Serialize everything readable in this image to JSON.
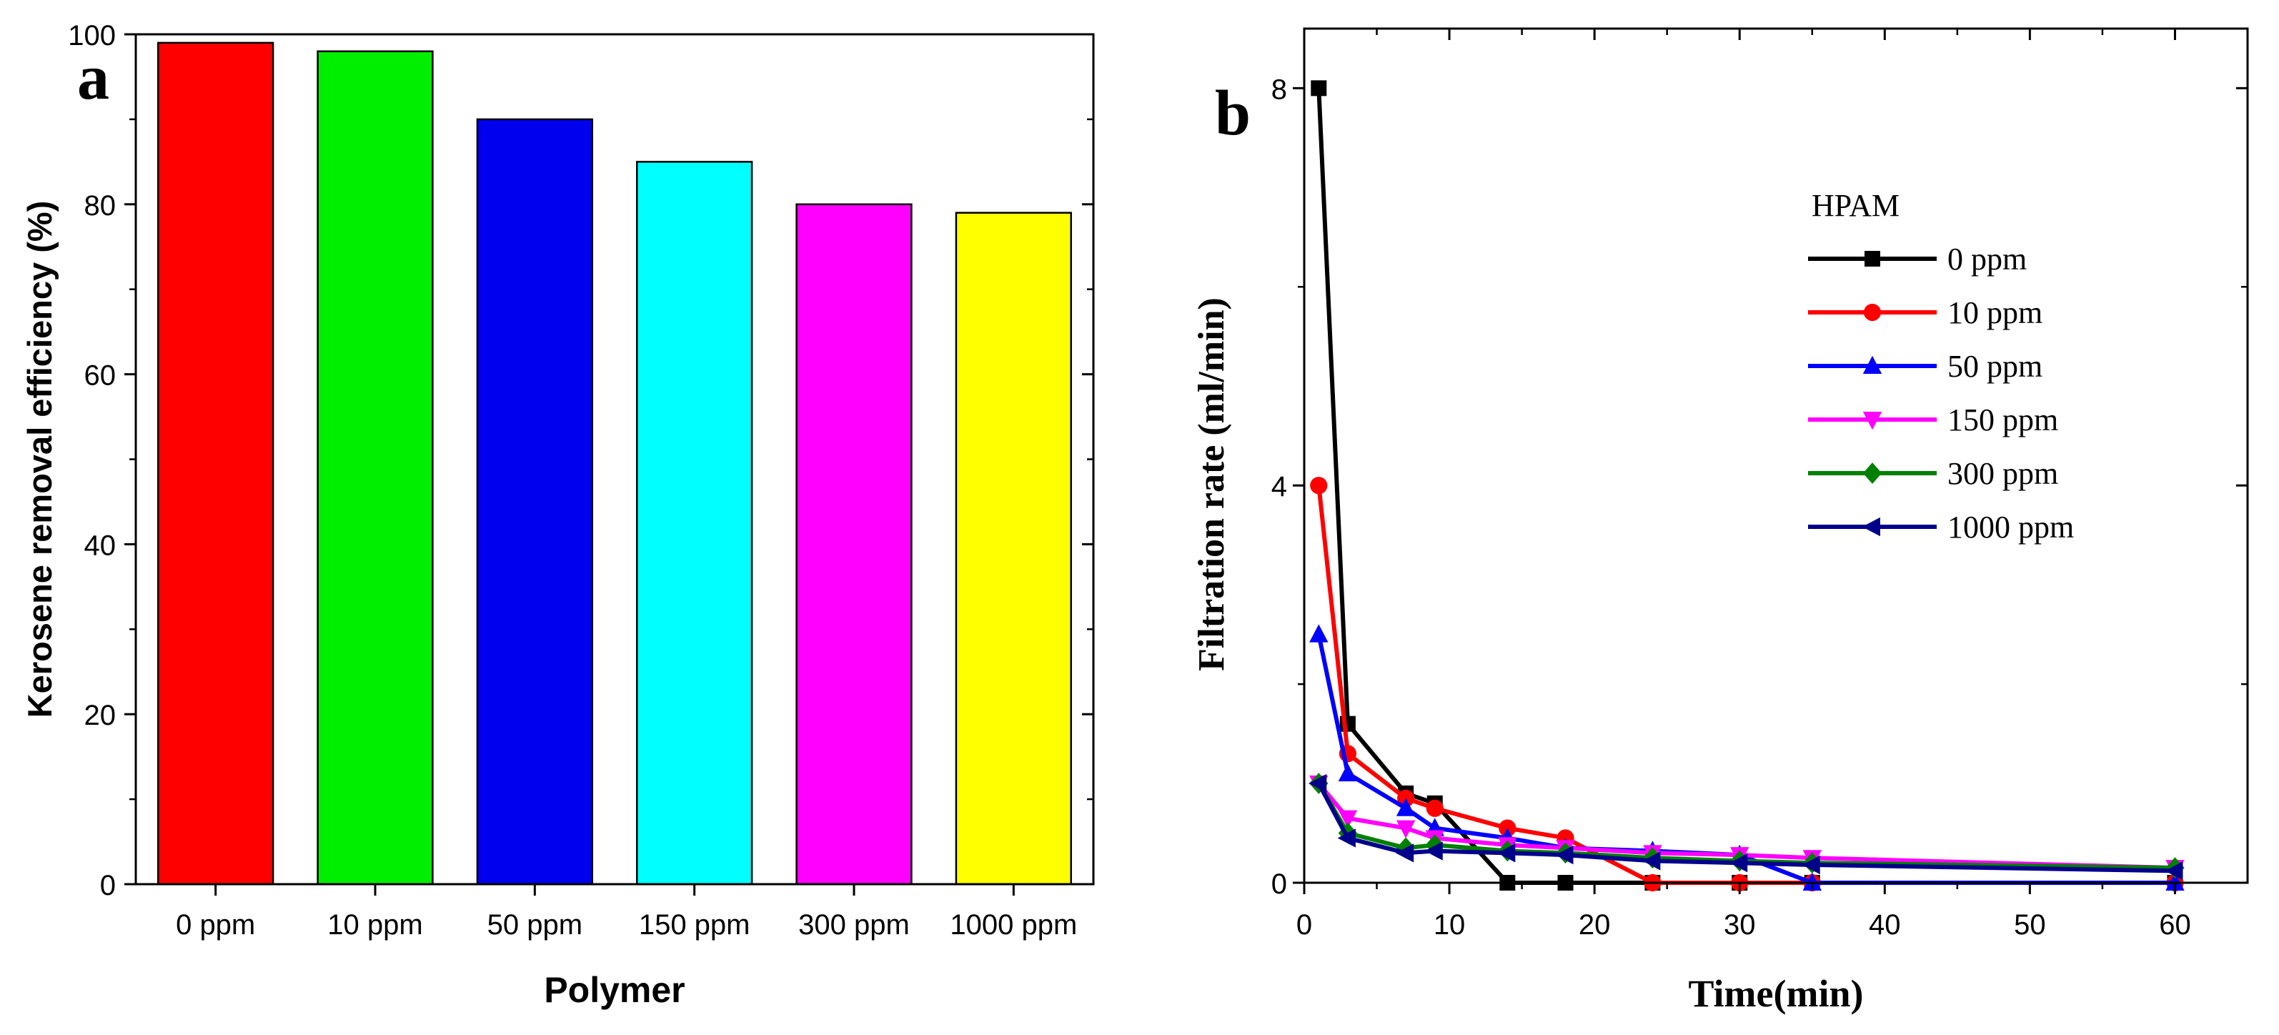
{
  "chart_data": [
    {
      "panel_label": "a",
      "type": "bar",
      "title": "",
      "xlabel": "Polymer",
      "ylabel": "Kerosene removal efficiency (%)",
      "ylim": [
        0,
        100
      ],
      "yticks": [
        0,
        20,
        40,
        60,
        80,
        100
      ],
      "categories": [
        "0 ppm",
        "10 ppm",
        "50 ppm",
        "150 ppm",
        "300 ppm",
        "1000 ppm"
      ],
      "values": [
        99,
        98,
        90,
        85,
        80,
        79
      ],
      "colors": [
        "#ff0000",
        "#00ee00",
        "#0000ee",
        "#00ffff",
        "#ff00ff",
        "#ffff00"
      ],
      "grid": false
    },
    {
      "panel_label": "b",
      "type": "line",
      "title": "",
      "xlabel": "Time(min)",
      "ylabel": "Filtration rate (ml/min)",
      "xlim": [
        0,
        65
      ],
      "ylim": [
        0,
        8.6
      ],
      "xticks": [
        0,
        10,
        20,
        30,
        40,
        50,
        60
      ],
      "yticks": [
        0,
        4,
        8
      ],
      "legend_title": "HPAM",
      "legend_position": "top-right",
      "grid": false,
      "series": [
        {
          "name": "0 ppm",
          "color": "#000000",
          "marker": "square",
          "x": [
            1,
            3,
            7,
            9,
            14,
            18,
            24,
            30,
            35,
            60
          ],
          "y": [
            8.0,
            1.6,
            0.9,
            0.8,
            0.0,
            0.0,
            0.0,
            0.0,
            0.0,
            0.0
          ]
        },
        {
          "name": "10 ppm",
          "color": "#ff0000",
          "marker": "circle",
          "x": [
            1,
            3,
            7,
            9,
            14,
            18,
            24,
            30,
            35,
            60
          ],
          "y": [
            4.0,
            1.3,
            0.85,
            0.75,
            0.55,
            0.45,
            0.0,
            0.0,
            0.0,
            0.0
          ]
        },
        {
          "name": "50 ppm",
          "color": "#0000ff",
          "marker": "triangle-up",
          "x": [
            1,
            3,
            7,
            9,
            14,
            18,
            24,
            30,
            35,
            60
          ],
          "y": [
            2.5,
            1.1,
            0.75,
            0.55,
            0.45,
            0.35,
            0.32,
            0.28,
            0.0,
            0.0
          ]
        },
        {
          "name": "150 ppm",
          "color": "#ff00ff",
          "marker": "triangle-down",
          "x": [
            1,
            3,
            7,
            9,
            14,
            18,
            24,
            30,
            35,
            60
          ],
          "y": [
            1.0,
            0.65,
            0.55,
            0.45,
            0.38,
            0.35,
            0.3,
            0.28,
            0.25,
            0.15
          ]
        },
        {
          "name": "300 ppm",
          "color": "#008000",
          "marker": "diamond",
          "x": [
            1,
            3,
            7,
            9,
            14,
            18,
            24,
            30,
            35,
            60
          ],
          "y": [
            1.0,
            0.5,
            0.35,
            0.38,
            0.32,
            0.3,
            0.25,
            0.22,
            0.2,
            0.15
          ]
        },
        {
          "name": "1000 ppm",
          "color": "#00008b",
          "marker": "triangle-left",
          "x": [
            1,
            3,
            7,
            9,
            14,
            18,
            24,
            30,
            35,
            60
          ],
          "y": [
            1.0,
            0.45,
            0.3,
            0.32,
            0.3,
            0.28,
            0.22,
            0.2,
            0.18,
            0.12
          ]
        }
      ]
    }
  ]
}
